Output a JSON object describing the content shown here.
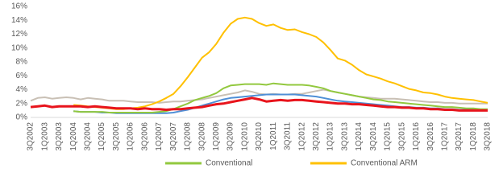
{
  "chart_data": {
    "type": "line",
    "categories": [
      "3Q2002",
      null,
      "1Q2003",
      null,
      "3Q2003",
      null,
      "1Q2004",
      null,
      "3Q2004",
      null,
      "1Q2005",
      null,
      "3Q2005",
      null,
      "1Q2006",
      null,
      "3Q2006",
      null,
      "1Q2007",
      null,
      "3Q2007",
      null,
      "1Q2008",
      null,
      "3Q2008",
      null,
      "1Q2009",
      null,
      "3Q2009",
      null,
      "1Q2010",
      null,
      "3Q2010",
      null,
      "1Q2011",
      null,
      "3Q2011",
      null,
      "1Q2012",
      null,
      "3Q2012",
      null,
      "1Q2013",
      null,
      "3Q2013",
      null,
      "1Q2014",
      null,
      "3Q2014",
      null,
      "1Q2015",
      null,
      "3Q2015",
      null,
      "1Q2016",
      null,
      "3Q2016",
      null,
      "1Q2017",
      null,
      "3Q2017",
      null,
      "1Q2018",
      null,
      "3Q2018"
    ],
    "ylim": [
      0,
      16
    ],
    "yticks": [
      {
        "value": 0,
        "label": "0%"
      },
      {
        "value": 2,
        "label": "2%"
      },
      {
        "value": 4,
        "label": "4%"
      },
      {
        "value": 6,
        "label": "6%"
      },
      {
        "value": 8,
        "label": "8%"
      },
      {
        "value": 10,
        "label": "10%"
      },
      {
        "value": 12,
        "label": "12%"
      },
      {
        "value": 14,
        "label": "14%"
      },
      {
        "value": 16,
        "label": "16%"
      }
    ],
    "grid": false,
    "legend": "bottom",
    "series": [
      {
        "color": "#c9c0b5",
        "values": [
          2.4,
          2.8,
          2.9,
          2.7,
          2.8,
          2.9,
          2.8,
          2.6,
          2.8,
          2.7,
          2.6,
          2.4,
          2.4,
          2.4,
          2.3,
          2.2,
          2.2,
          2.2,
          2.1,
          2.2,
          2.3,
          2.3,
          2.4,
          2.5,
          2.6,
          2.8,
          3.0,
          3.2,
          3.4,
          3.6,
          3.9,
          3.7,
          3.4,
          3.3,
          3.4,
          3.3,
          3.3,
          3.4,
          3.4,
          3.6,
          3.8,
          4.0,
          3.8,
          3.6,
          3.4,
          3.2,
          3.0,
          2.9,
          2.8,
          2.7,
          2.7,
          2.7,
          2.6,
          2.5,
          2.4,
          2.3,
          2.2,
          2.2,
          2.1,
          2.1,
          2.0,
          2.0,
          2.0,
          2.0,
          2.0
        ]
      },
      {
        "color": "#4f8fd6",
        "values": [
          null,
          null,
          null,
          null,
          null,
          null,
          0.9,
          0.8,
          0.8,
          0.8,
          0.7,
          0.7,
          0.6,
          0.6,
          0.6,
          0.6,
          0.6,
          0.6,
          0.6,
          0.6,
          0.7,
          0.9,
          1.1,
          1.4,
          1.7,
          2.0,
          2.3,
          2.6,
          2.8,
          2.9,
          3.0,
          3.1,
          3.2,
          3.3,
          3.3,
          3.3,
          3.3,
          3.3,
          3.2,
          3.1,
          3.0,
          2.8,
          2.6,
          2.4,
          2.3,
          2.2,
          2.1,
          2.0,
          1.9,
          1.8,
          1.7,
          1.6,
          1.5,
          1.5,
          1.4,
          1.4,
          1.3,
          1.3,
          1.2,
          1.2,
          1.1,
          1.1,
          1.1,
          1.0,
          1.0
        ]
      },
      {
        "name": "Conventional",
        "color": "#92c83e",
        "values": [
          null,
          null,
          null,
          null,
          null,
          null,
          0.9,
          0.8,
          0.8,
          0.8,
          0.8,
          0.7,
          0.7,
          0.7,
          0.7,
          0.7,
          0.7,
          0.7,
          0.8,
          0.9,
          1.2,
          1.6,
          2.0,
          2.5,
          2.8,
          3.1,
          3.5,
          4.2,
          4.6,
          4.7,
          4.8,
          4.8,
          4.8,
          4.7,
          4.9,
          4.8,
          4.7,
          4.7,
          4.7,
          4.6,
          4.4,
          4.2,
          3.8,
          3.6,
          3.4,
          3.2,
          3.0,
          2.8,
          2.6,
          2.5,
          2.3,
          2.2,
          2.1,
          2.0,
          1.9,
          1.8,
          1.7,
          1.6,
          1.5,
          1.5,
          1.4,
          1.3,
          1.3,
          1.2,
          1.2
        ]
      },
      {
        "name": "Conventional ARM",
        "color": "#ffc000",
        "values": [
          null,
          null,
          null,
          null,
          null,
          null,
          1.8,
          1.7,
          1.6,
          1.5,
          1.4,
          1.3,
          1.2,
          1.2,
          1.3,
          1.4,
          1.6,
          1.9,
          2.3,
          2.8,
          3.4,
          4.5,
          5.8,
          7.2,
          8.6,
          9.4,
          10.6,
          12.2,
          13.5,
          14.2,
          14.4,
          14.2,
          13.6,
          13.2,
          13.4,
          12.9,
          12.6,
          12.7,
          12.3,
          12.0,
          11.6,
          10.8,
          9.7,
          8.5,
          8.2,
          7.6,
          6.8,
          6.2,
          5.9,
          5.6,
          5.2,
          4.9,
          4.5,
          4.1,
          3.9,
          3.6,
          3.5,
          3.3,
          3.0,
          2.8,
          2.7,
          2.6,
          2.5,
          2.3,
          2.1
        ]
      },
      {
        "color": "#e8141c",
        "width": 3,
        "values": [
          1.5,
          1.6,
          1.7,
          1.5,
          1.6,
          1.6,
          1.6,
          1.6,
          1.5,
          1.6,
          1.5,
          1.4,
          1.3,
          1.3,
          1.3,
          1.2,
          1.3,
          1.2,
          1.2,
          1.1,
          1.2,
          1.2,
          1.3,
          1.4,
          1.5,
          1.7,
          1.9,
          2.0,
          2.2,
          2.4,
          2.6,
          2.8,
          2.6,
          2.3,
          2.4,
          2.5,
          2.4,
          2.5,
          2.5,
          2.4,
          2.3,
          2.2,
          2.1,
          2.0,
          2.0,
          1.9,
          1.9,
          1.8,
          1.7,
          1.6,
          1.5,
          1.5,
          1.4,
          1.4,
          1.3,
          1.3,
          1.2,
          1.2,
          1.1,
          1.1,
          1.0,
          1.0,
          1.0,
          1.0,
          1.0
        ]
      }
    ]
  }
}
